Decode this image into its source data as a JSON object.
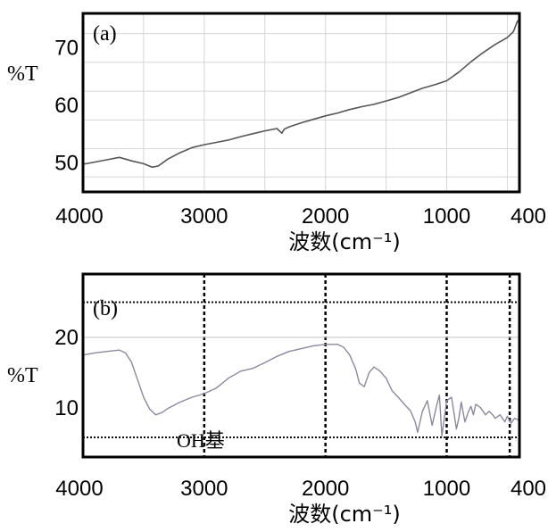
{
  "chart_data": [
    {
      "type": "line",
      "panel_label": "(a)",
      "xlabel": "波数(cm⁻¹)",
      "ylabel": "%T",
      "xlim": [
        4000,
        400
      ],
      "ylim": [
        45,
        76
      ],
      "x_ticks": [
        "4000",
        "3000",
        "2000",
        "1000",
        "400"
      ],
      "y_ticks": [
        "70",
        "60",
        "50"
      ],
      "grid": true,
      "series": [
        {
          "color": "#555555",
          "x": [
            4000,
            3900,
            3800,
            3700,
            3600,
            3500,
            3430,
            3380,
            3300,
            3200,
            3100,
            3000,
            2900,
            2800,
            2700,
            2600,
            2500,
            2400,
            2360,
            2340,
            2300,
            2200,
            2100,
            2000,
            1900,
            1800,
            1700,
            1600,
            1500,
            1400,
            1300,
            1200,
            1100,
            1000,
            900,
            800,
            700,
            600,
            500,
            450,
            420,
            400
          ],
          "y": [
            49.8,
            50.2,
            50.6,
            51.0,
            50.4,
            49.9,
            49.3,
            49.5,
            50.7,
            51.8,
            52.7,
            53.2,
            53.6,
            54.0,
            54.6,
            55.1,
            55.6,
            56.0,
            55.2,
            55.9,
            56.3,
            57.0,
            57.6,
            58.2,
            58.7,
            59.3,
            59.8,
            60.2,
            60.8,
            61.4,
            62.2,
            63.0,
            63.6,
            64.3,
            65.8,
            67.6,
            69.2,
            70.6,
            71.8,
            72.8,
            74.5,
            75.0
          ]
        }
      ]
    },
    {
      "type": "line",
      "panel_label": "(b)",
      "annotation": "OH基",
      "xlabel": "波数(cm⁻¹)",
      "ylabel": "%T",
      "xlim": [
        4000,
        400
      ],
      "ylim": [
        3,
        29
      ],
      "x_ticks": [
        "4000",
        "3000",
        "2000",
        "1000",
        "400"
      ],
      "y_ticks": [
        "20",
        "10"
      ],
      "grid": true,
      "series": [
        {
          "color": "#8a8a9c",
          "x": [
            4000,
            3900,
            3800,
            3700,
            3650,
            3600,
            3550,
            3500,
            3450,
            3400,
            3350,
            3300,
            3200,
            3100,
            3000,
            2900,
            2800,
            2700,
            2600,
            2500,
            2400,
            2300,
            2200,
            2100,
            2000,
            1900,
            1850,
            1800,
            1750,
            1720,
            1680,
            1640,
            1600,
            1550,
            1500,
            1450,
            1400,
            1350,
            1300,
            1260,
            1240,
            1200,
            1160,
            1120,
            1080,
            1060,
            1040,
            1000,
            960,
            920,
            900,
            880,
            850,
            820,
            800,
            780,
            760,
            720,
            680,
            650,
            620,
            600,
            560,
            520,
            500,
            470,
            440,
            400
          ],
          "y": [
            17.5,
            17.8,
            18.0,
            18.2,
            17.8,
            16.5,
            14.0,
            11.5,
            9.8,
            9.0,
            9.3,
            9.9,
            10.8,
            11.5,
            12.0,
            12.8,
            14.2,
            15.2,
            15.6,
            16.4,
            17.3,
            18.0,
            18.4,
            18.8,
            19.0,
            19.0,
            18.6,
            17.5,
            15.5,
            13.5,
            13.0,
            15.0,
            15.8,
            15.2,
            14.2,
            12.4,
            11.5,
            10.5,
            9.6,
            8.0,
            6.5,
            9.5,
            11.0,
            7.5,
            10.5,
            11.8,
            6.0,
            11.0,
            11.5,
            7.0,
            8.5,
            10.8,
            8.0,
            9.5,
            10.2,
            9.0,
            10.5,
            10.0,
            9.0,
            9.5,
            9.0,
            8.5,
            9.0,
            8.0,
            8.8,
            7.8,
            8.5,
            8.2
          ]
        }
      ]
    }
  ]
}
